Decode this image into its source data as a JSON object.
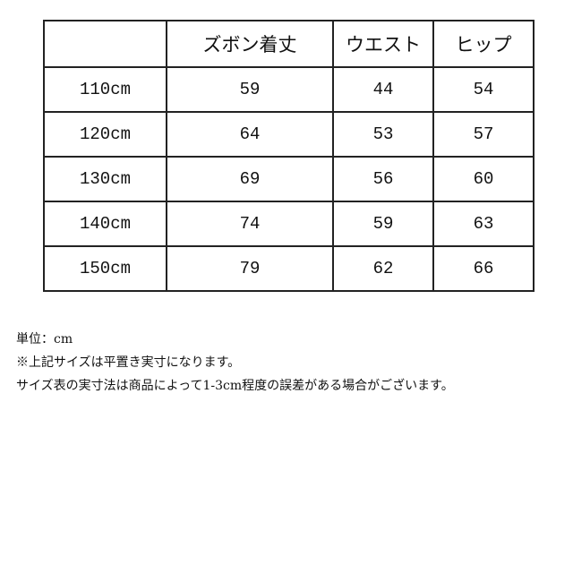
{
  "table": {
    "headers": [
      "",
      "ズボン着丈",
      "ウエスト",
      "ヒップ"
    ],
    "rows": [
      [
        "110cm",
        "59",
        "44",
        "54"
      ],
      [
        "120cm",
        "64",
        "53",
        "57"
      ],
      [
        "130cm",
        "69",
        "56",
        "60"
      ],
      [
        "140cm",
        "74",
        "59",
        "63"
      ],
      [
        "150cm",
        "79",
        "62",
        "66"
      ]
    ]
  },
  "notes": [
    "単位：cm",
    "※上記サイズは平置き実寸になります。",
    "サイズ表の実寸法は商品によって1-3cm程度の誤差がある場合がございます。"
  ]
}
